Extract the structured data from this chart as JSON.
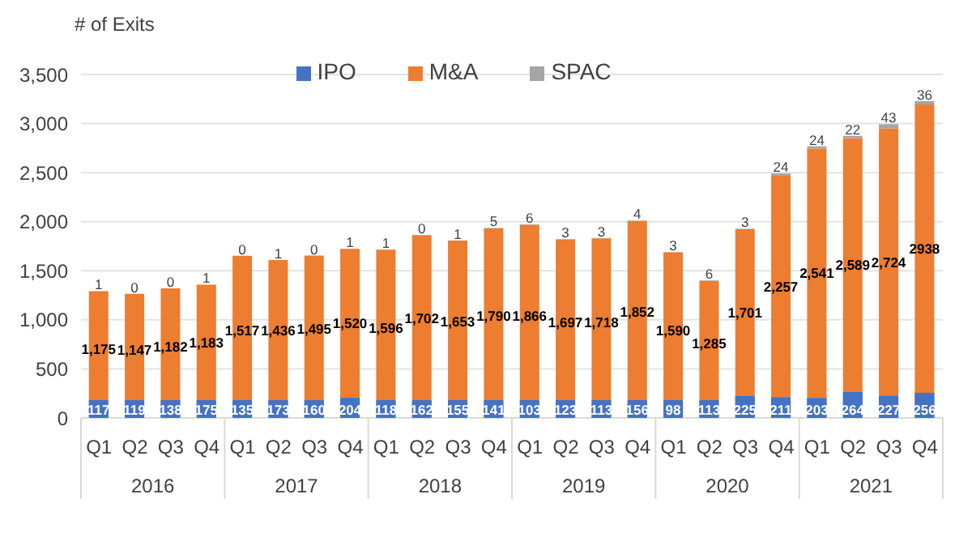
{
  "chart_data": {
    "type": "bar",
    "stacked": true,
    "ylabel": "# of Exits",
    "categories": [
      "Q1",
      "Q2",
      "Q3",
      "Q4",
      "Q1",
      "Q2",
      "Q3",
      "Q4",
      "Q1",
      "Q2",
      "Q3",
      "Q4",
      "Q1",
      "Q2",
      "Q3",
      "Q4",
      "Q1",
      "Q2",
      "Q3",
      "Q4",
      "Q1",
      "Q2",
      "Q3",
      "Q4"
    ],
    "annotations": [
      "2016",
      "2017",
      "2018",
      "2019",
      "2020",
      "2021"
    ],
    "series": [
      {
        "name": "IPO",
        "color": "#4472c4",
        "values": [
          117,
          119,
          138,
          175,
          135,
          173,
          160,
          204,
          118,
          162,
          155,
          141,
          103,
          123,
          113,
          156,
          98,
          113,
          225,
          211,
          203,
          264,
          227,
          256
        ],
        "value_labels": [
          "117",
          "119",
          "138",
          "175",
          "135",
          "173",
          "160",
          "204",
          "118",
          "162",
          "155",
          "141",
          "103",
          "123",
          "113",
          "156",
          "98",
          "113",
          "225",
          "211",
          "203",
          "264",
          "227",
          "256"
        ]
      },
      {
        "name": "M&A",
        "color": "#ed7d31",
        "values": [
          1175,
          1147,
          1182,
          1183,
          1517,
          1436,
          1495,
          1520,
          1596,
          1702,
          1653,
          1790,
          1866,
          1697,
          1718,
          1852,
          1590,
          1285,
          1701,
          2257,
          2541,
          2589,
          2724,
          2938
        ],
        "value_labels": [
          "1,175",
          "1,147",
          "1,182",
          "1,183",
          "1,517",
          "1,436",
          "1,495",
          "1,520",
          "1,596",
          "1,702",
          "1,653",
          "1,790",
          "1,866",
          "1,697",
          "1,718",
          "1,852",
          "1,590",
          "1,285",
          "1,701",
          "2,257",
          "2,541",
          "2,589",
          "2,724",
          "2938"
        ]
      },
      {
        "name": "SPAC",
        "color": "#a5a5a5",
        "values": [
          1,
          0,
          0,
          1,
          0,
          1,
          0,
          1,
          1,
          0,
          1,
          5,
          6,
          3,
          3,
          4,
          3,
          6,
          3,
          24,
          24,
          22,
          43,
          36
        ],
        "value_labels": [
          "1",
          "0",
          "0",
          "1",
          "0",
          "1",
          "0",
          "1",
          "1",
          "0",
          "1",
          "5",
          "6",
          "3",
          "3",
          "4",
          "3",
          "6",
          "3",
          "24",
          "24",
          "22",
          "43",
          "36"
        ]
      }
    ],
    "ylim": [
      0,
      3500
    ],
    "yticks": [
      {
        "value": 0,
        "label": "0"
      },
      {
        "value": 500,
        "label": "500"
      },
      {
        "value": 1000,
        "label": "1,000"
      },
      {
        "value": 1500,
        "label": "1,500"
      },
      {
        "value": 2000,
        "label": "2,000"
      },
      {
        "value": 2500,
        "label": "2,500"
      },
      {
        "value": 3000,
        "label": "3,000"
      },
      {
        "value": 3500,
        "label": "3,500"
      }
    ],
    "grid": "y",
    "legend": "top"
  }
}
